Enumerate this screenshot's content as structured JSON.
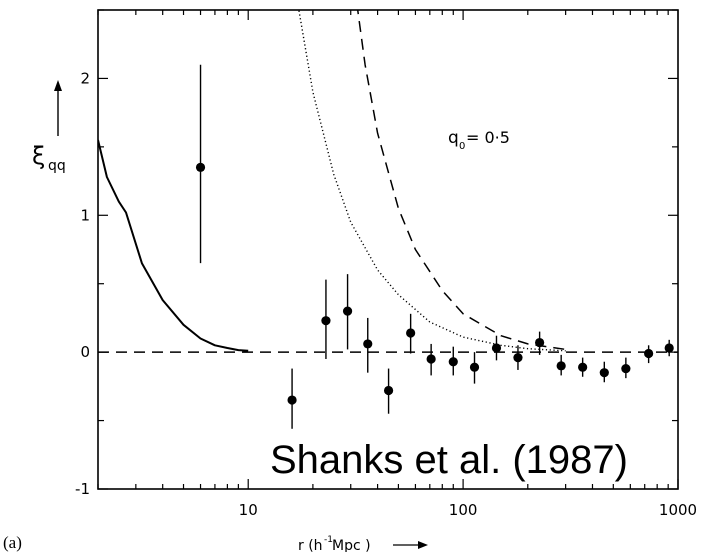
{
  "chart_data": {
    "type": "scatter",
    "panel_label": "(a)",
    "credit": "Shanks et al. (1987)",
    "annotation": {
      "symbol": "q",
      "subscript": "0",
      "text": " = 0·5"
    },
    "ylabel": {
      "symbol": "ξ",
      "subscript": "qq"
    },
    "xlabel": {
      "main": "r (h",
      "sup": "-1",
      "rest": " Mpc )"
    },
    "x_scale": "log",
    "xlim": [
      2,
      1000
    ],
    "ylim": [
      -1,
      2.5
    ],
    "x_ticks": [
      {
        "value": 10,
        "label": "10"
      },
      {
        "value": 100,
        "label": "100"
      },
      {
        "value": 1000,
        "label": "1000"
      }
    ],
    "y_ticks": [
      {
        "value": -1,
        "label": "-1"
      },
      {
        "value": 0,
        "label": "0"
      },
      {
        "value": 1,
        "label": "1"
      },
      {
        "value": 2,
        "label": "2"
      }
    ],
    "points": [
      {
        "x": 6,
        "y": 1.35,
        "lo": 0.65,
        "hi": 2.1
      },
      {
        "x": 16,
        "y": -0.35,
        "lo": -0.56,
        "hi": -0.12
      },
      {
        "x": 23,
        "y": 0.23,
        "lo": -0.05,
        "hi": 0.53
      },
      {
        "x": 29,
        "y": 0.3,
        "lo": 0.02,
        "hi": 0.57
      },
      {
        "x": 36,
        "y": 0.06,
        "lo": -0.15,
        "hi": 0.25
      },
      {
        "x": 45,
        "y": -0.28,
        "lo": -0.45,
        "hi": -0.12
      },
      {
        "x": 57,
        "y": 0.14,
        "lo": -0.01,
        "hi": 0.28
      },
      {
        "x": 71,
        "y": -0.05,
        "lo": -0.17,
        "hi": 0.06
      },
      {
        "x": 90,
        "y": -0.07,
        "lo": -0.17,
        "hi": 0.04
      },
      {
        "x": 113,
        "y": -0.11,
        "lo": -0.23,
        "hi": 0.0
      },
      {
        "x": 143,
        "y": 0.03,
        "lo": -0.06,
        "hi": 0.12
      },
      {
        "x": 180,
        "y": -0.04,
        "lo": -0.13,
        "hi": 0.05
      },
      {
        "x": 227,
        "y": 0.07,
        "lo": -0.02,
        "hi": 0.15
      },
      {
        "x": 286,
        "y": -0.1,
        "lo": -0.17,
        "hi": -0.02
      },
      {
        "x": 360,
        "y": -0.11,
        "lo": -0.18,
        "hi": -0.04
      },
      {
        "x": 454,
        "y": -0.15,
        "lo": -0.22,
        "hi": -0.07
      },
      {
        "x": 572,
        "y": -0.12,
        "lo": -0.19,
        "hi": -0.04
      },
      {
        "x": 730,
        "y": -0.01,
        "lo": -0.08,
        "hi": 0.05
      },
      {
        "x": 910,
        "y": 0.03,
        "lo": -0.03,
        "hi": 0.09
      }
    ],
    "lines": [
      {
        "style": "solid",
        "x": [
          2,
          2.2,
          2.5,
          2.7,
          3.2,
          4,
          5,
          6,
          7,
          8,
          9,
          10
        ],
        "y": [
          1.55,
          1.28,
          1.1,
          1.02,
          0.65,
          0.38,
          0.2,
          0.1,
          0.05,
          0.03,
          0.015,
          0.01
        ]
      },
      {
        "style": "dotted",
        "x": [
          17,
          20,
          25,
          30,
          40,
          50,
          70,
          100,
          150,
          200,
          300
        ],
        "y": [
          2.55,
          1.9,
          1.3,
          0.95,
          0.6,
          0.42,
          0.22,
          0.11,
          0.05,
          0.025,
          0.01
        ]
      },
      {
        "style": "dashed",
        "x": [
          32,
          35,
          40,
          50,
          60,
          80,
          100,
          150,
          200,
          300
        ],
        "y": [
          2.55,
          2.1,
          1.6,
          1.05,
          0.75,
          0.45,
          0.28,
          0.12,
          0.06,
          0.02
        ]
      },
      {
        "style": "dashed",
        "x": [
          2,
          1000
        ],
        "y": [
          0,
          0
        ]
      }
    ]
  }
}
